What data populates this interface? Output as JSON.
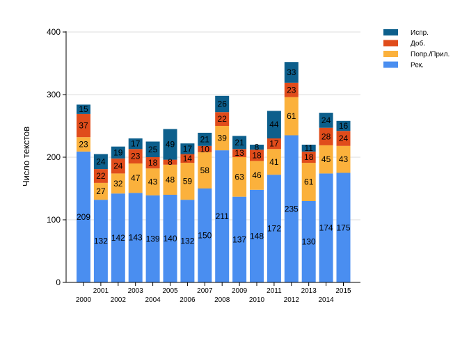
{
  "chart_data": {
    "type": "bar",
    "stacked": true,
    "categories": [
      "2000",
      "2001",
      "2002",
      "2003",
      "2004",
      "2005",
      "2006",
      "2007",
      "2008",
      "2009",
      "2010",
      "2011",
      "2012",
      "2013",
      "2014",
      "2015"
    ],
    "series": [
      {
        "name": "Рек.",
        "color": "#4a8ef0",
        "values": [
          209,
          132,
          142,
          143,
          139,
          140,
          132,
          150,
          211,
          137,
          148,
          172,
          235,
          130,
          174,
          175
        ]
      },
      {
        "name": "Попр./Прил.",
        "color": "#fbb13c",
        "values": [
          23,
          27,
          32,
          47,
          43,
          48,
          59,
          58,
          39,
          63,
          46,
          41,
          61,
          61,
          45,
          43
        ]
      },
      {
        "name": "Доб.",
        "color": "#e04c1b",
        "values": [
          37,
          22,
          24,
          23,
          18,
          8,
          14,
          10,
          22,
          13,
          18,
          17,
          23,
          18,
          28,
          24
        ]
      },
      {
        "name": "Испр.",
        "color": "#0d5f8c",
        "values": [
          15,
          24,
          19,
          17,
          25,
          49,
          17,
          21,
          26,
          21,
          8,
          44,
          33,
          11,
          24,
          16
        ]
      }
    ],
    "ylabel": "Число текстов",
    "xlabel": "",
    "ylim": [
      0,
      400
    ],
    "yticks": [
      0,
      100,
      200,
      300,
      400
    ],
    "grid": true,
    "legend_position": "top-right"
  }
}
